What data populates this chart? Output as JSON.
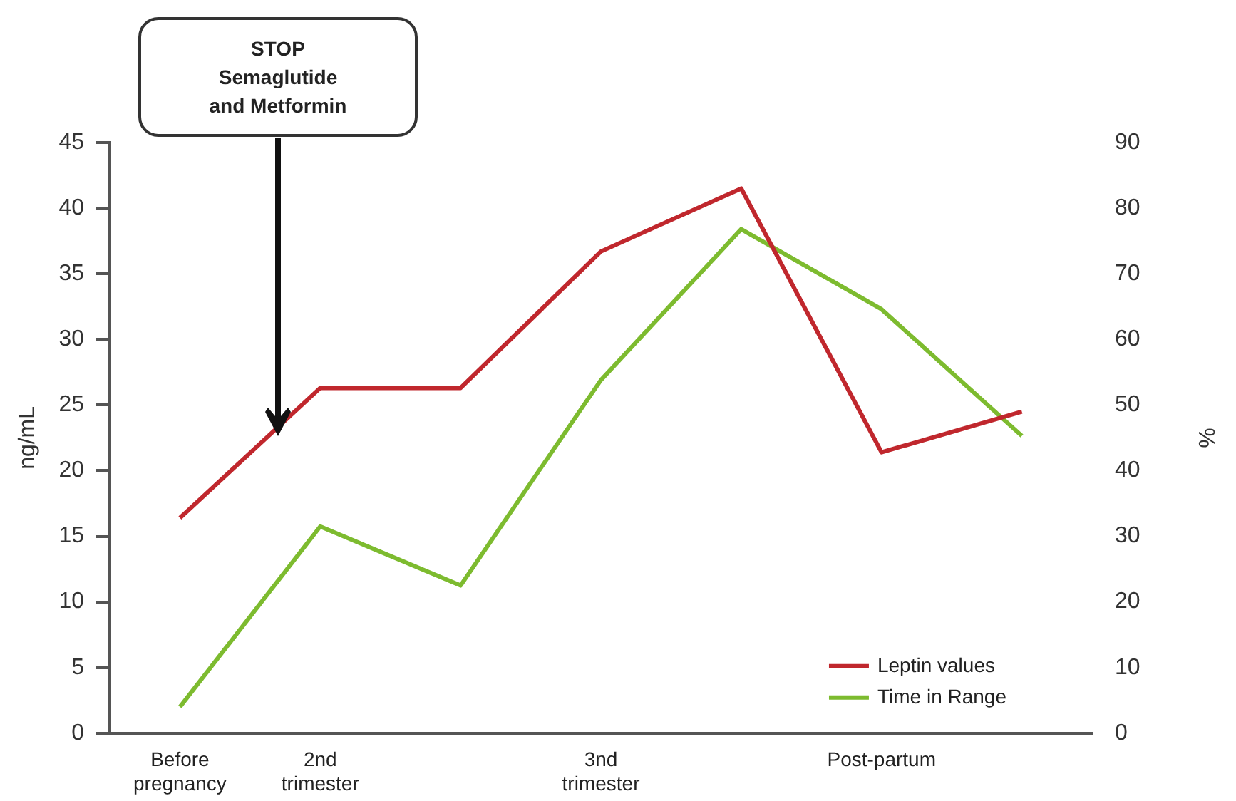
{
  "chart_data": {
    "type": "line",
    "ylabel": "ng/mL",
    "y2label": "%",
    "categories": [
      "Before pregnancy",
      "2nd trimester",
      null,
      "3nd trimester",
      null,
      "Post-partum",
      null
    ],
    "series": [
      {
        "name": "Leptin values",
        "color": "#c0272d",
        "values": [
          16.4,
          26.3,
          26.3,
          36.7,
          41.5,
          21.4,
          24.5
        ]
      },
      {
        "name": "Time in Range",
        "color": "#7dbb2f",
        "axis": "y2",
        "values": [
          4.0,
          31.5,
          22.5,
          53.8,
          76.8,
          64.6,
          45.3
        ]
      }
    ],
    "ylim": [
      0,
      45
    ],
    "yticks": [
      0,
      5,
      10,
      15,
      20,
      25,
      30,
      35,
      40,
      45
    ],
    "y2lim": [
      0,
      90
    ],
    "y2ticks": [
      0,
      10,
      20,
      30,
      40,
      50,
      60,
      70,
      80,
      90
    ],
    "grid": false,
    "legend": "bottom right",
    "marker": "none",
    "line_style": "solid",
    "annotations": [
      "STOP\nSemaglutide\nand Metformin"
    ]
  }
}
